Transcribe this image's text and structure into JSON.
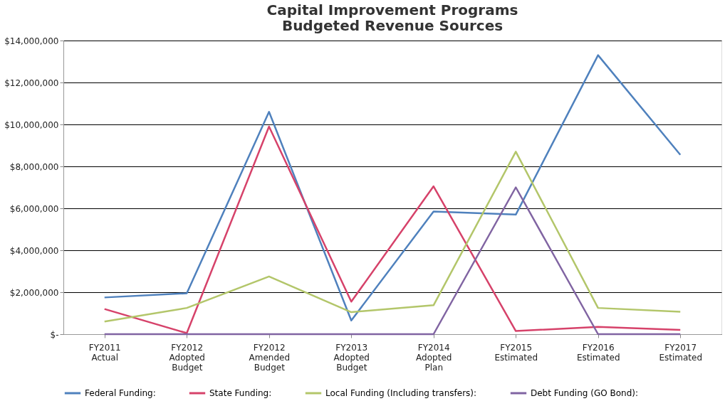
{
  "chart_data": {
    "type": "line",
    "title": [
      "Capital Improvement Programs",
      "Budgeted Revenue Sources"
    ],
    "categories": [
      "FY2011\nActual",
      "FY2012\nAdopted\nBudget",
      "FY2012\nAmended\nBudget",
      "FY2013\nAdopted\nBudget",
      "FY2014\nAdopted\nPlan",
      "FY2015\nEstimated",
      "FY2016\nEstimated",
      "FY2017\nEstimated"
    ],
    "series": [
      {
        "name": "Federal Funding:",
        "color": "#4f81bd",
        "values": [
          1750000,
          1950000,
          10600000,
          650000,
          5850000,
          5700000,
          13300000,
          8550000
        ]
      },
      {
        "name": "State Funding:",
        "color": "#d6426a",
        "values": [
          1200000,
          50000,
          9900000,
          1550000,
          7050000,
          150000,
          350000,
          200000
        ]
      },
      {
        "name": "Local Funding (Including transfers):",
        "color": "#b3c66a",
        "values": [
          600000,
          1250000,
          2750000,
          1050000,
          1380000,
          8700000,
          1250000,
          1070000
        ]
      },
      {
        "name": "Debt Funding (GO Bond):",
        "color": "#8064a2",
        "values": [
          0,
          0,
          0,
          0,
          0,
          7000000,
          0,
          0
        ]
      }
    ],
    "ylim": [
      0,
      14000000
    ],
    "yticks": [
      {
        "value": 0,
        "label": "$-"
      },
      {
        "value": 2000000,
        "label": "$2,000,000"
      },
      {
        "value": 4000000,
        "label": "$4,000,000"
      },
      {
        "value": 6000000,
        "label": "$6,000,000"
      },
      {
        "value": 8000000,
        "label": "$8,000,000"
      },
      {
        "value": 10000000,
        "label": "$10,000,000"
      },
      {
        "value": 12000000,
        "label": "$12,000,000"
      },
      {
        "value": 14000000,
        "label": "$14,000,000"
      }
    ],
    "grid": "y",
    "legend": "bottom",
    "marker": "none",
    "line_style": "solid"
  }
}
